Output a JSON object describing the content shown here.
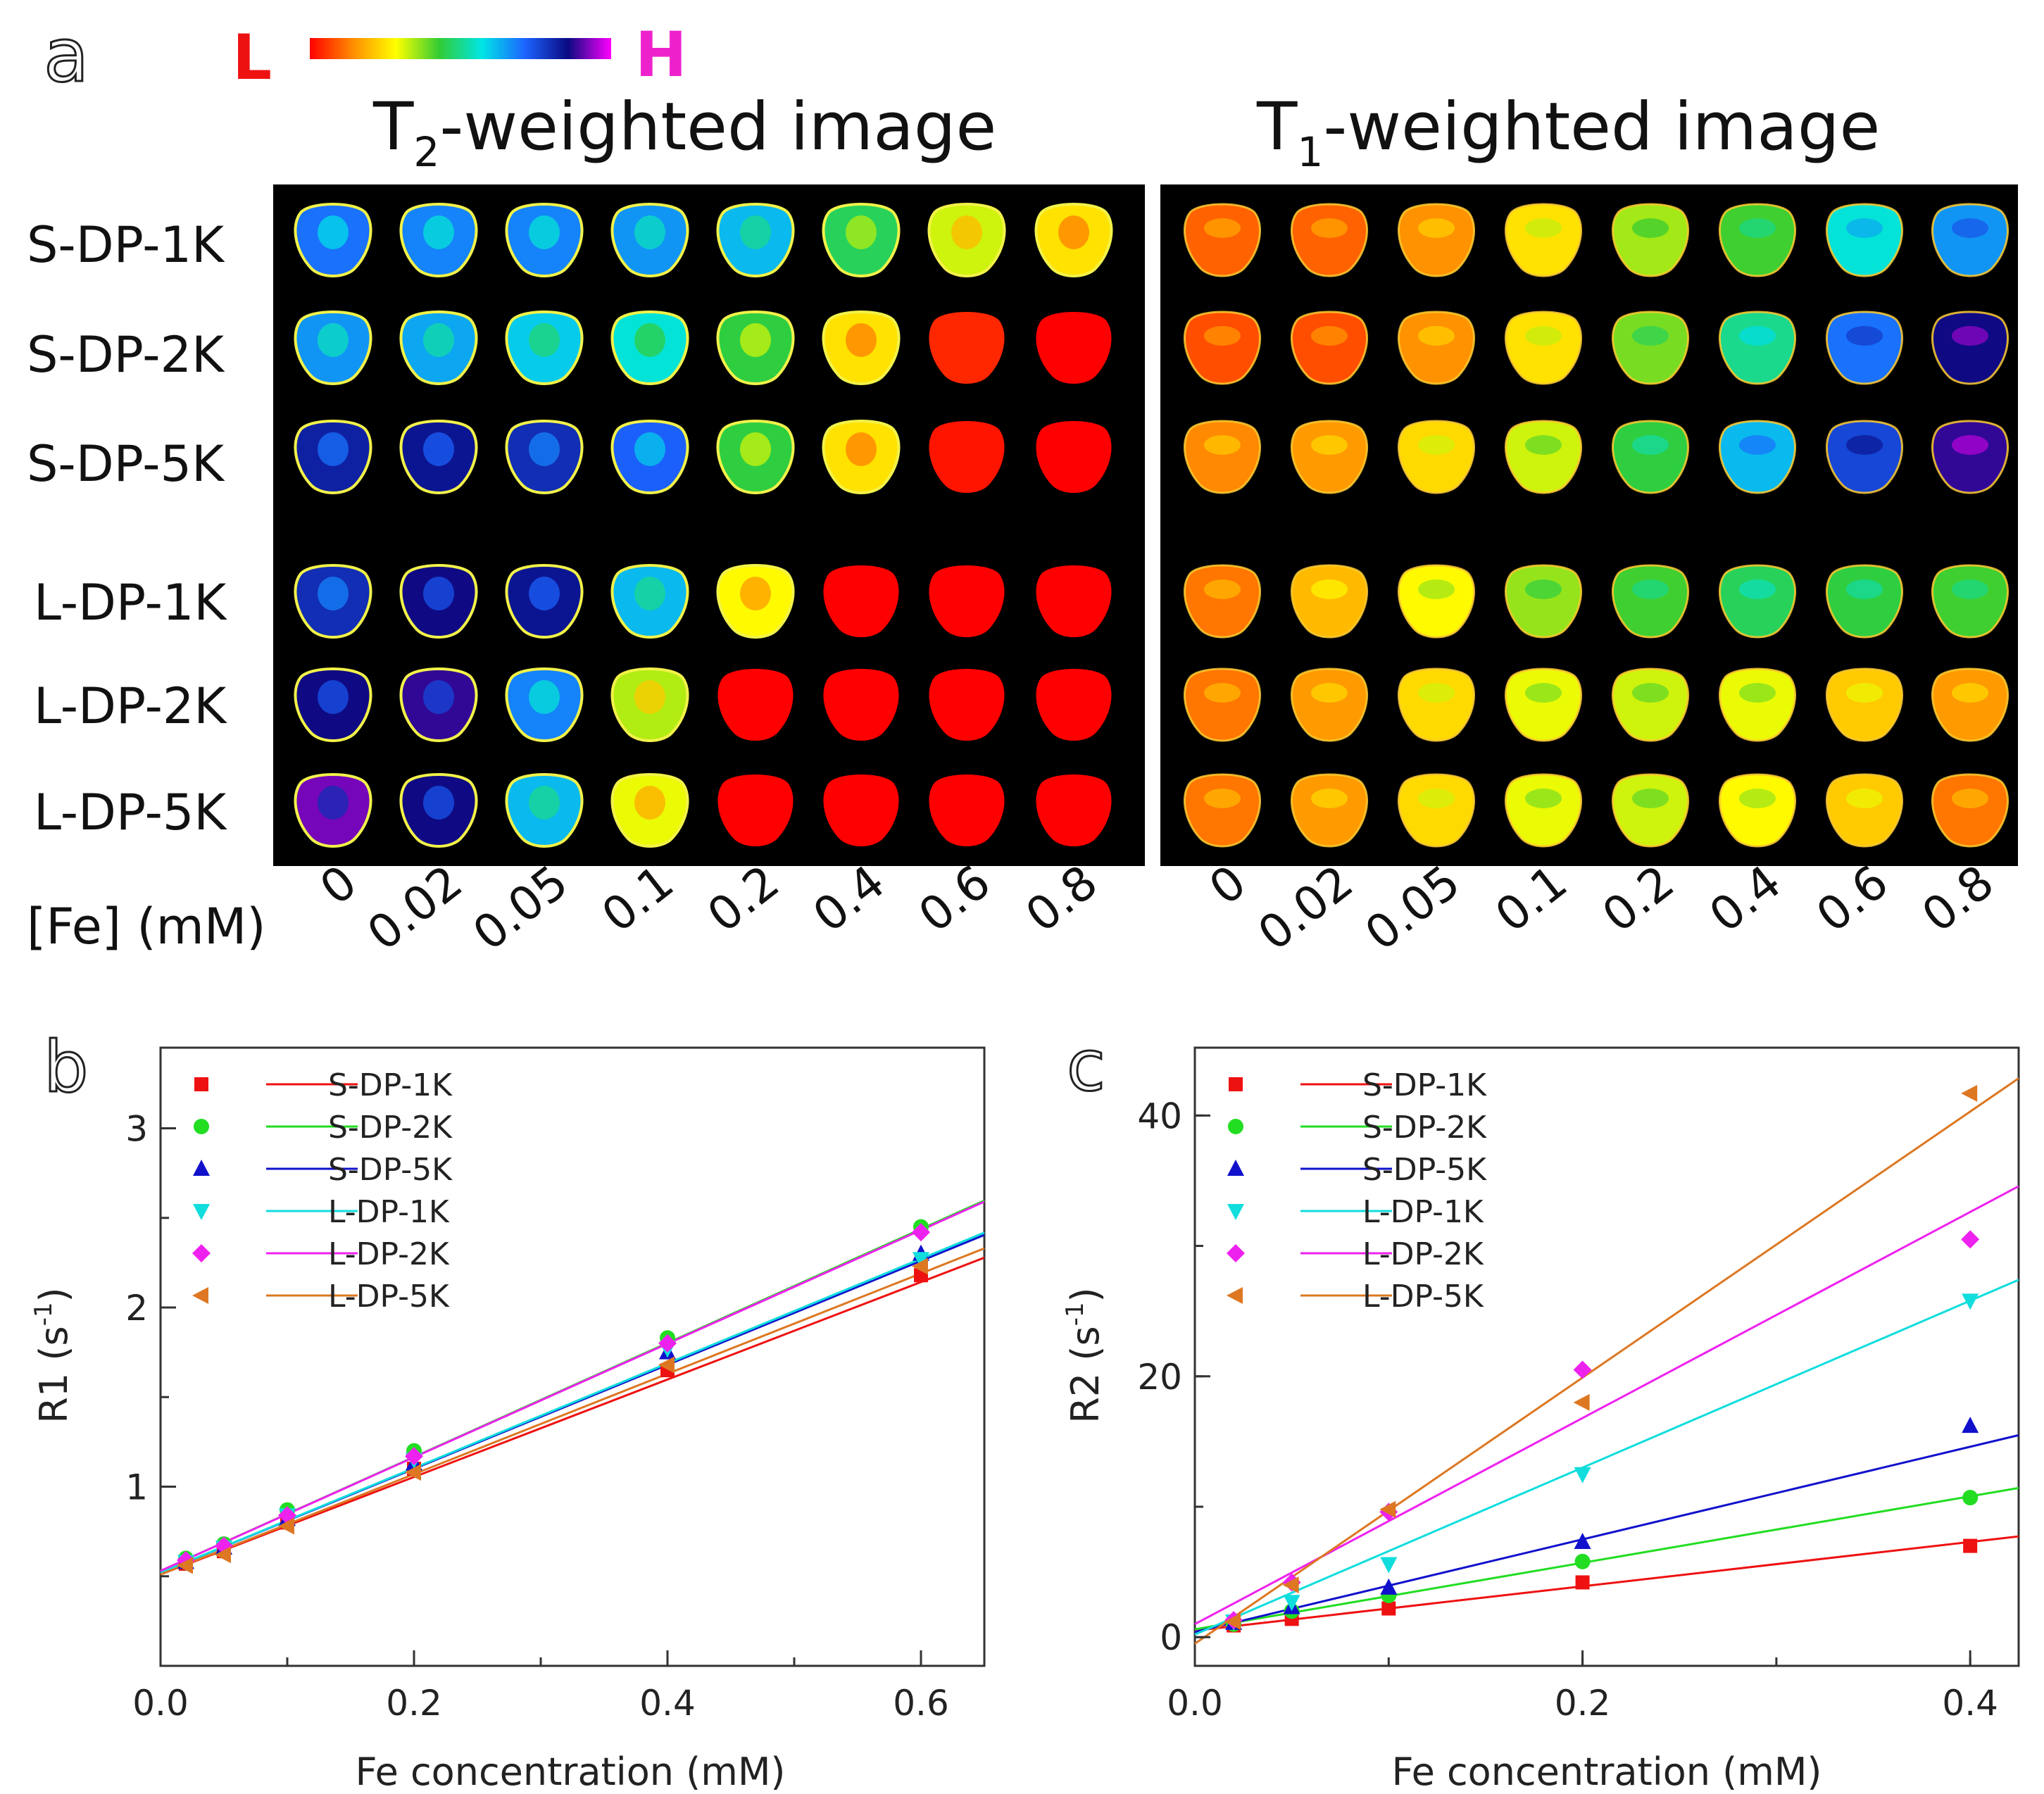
{
  "panel_a": {
    "label": "a",
    "colorbar": {
      "low_label": "L",
      "high_label": "H",
      "stops": [
        "#ff0000",
        "#ff8c00",
        "#ffff00",
        "#33cc33",
        "#00e5e5",
        "#1c64ff",
        "#0a0a82",
        "#ff00ff"
      ]
    },
    "t2_title_prefix": "T",
    "t2_title_sub": "2",
    "t2_title_suffix": "-weighted image",
    "t1_title_prefix": "T",
    "t1_title_sub": "1",
    "t1_title_suffix": "-weighted image",
    "row_labels": [
      "S-DP-1K",
      "S-DP-2K",
      "S-DP-5K",
      "L-DP-1K",
      "L-DP-2K",
      "L-DP-5K"
    ],
    "axis_label": "[Fe] (mM)",
    "concentrations": [
      "0",
      "0.02",
      "0.05",
      "0.1",
      "0.2",
      "0.4",
      "0.6",
      "0.8"
    ],
    "t2_intensity": [
      [
        0.7,
        0.68,
        0.68,
        0.66,
        0.62,
        0.46,
        0.32,
        0.25
      ],
      [
        0.66,
        0.64,
        0.6,
        0.56,
        0.44,
        0.25,
        0.04,
        0.0
      ],
      [
        0.82,
        0.84,
        0.8,
        0.72,
        0.44,
        0.25,
        0.02,
        0.0
      ],
      [
        0.8,
        0.86,
        0.84,
        0.62,
        0.28,
        0.0,
        0.0,
        0.0
      ],
      [
        0.86,
        0.88,
        0.68,
        0.34,
        0.0,
        0.0,
        0.0,
        0.0
      ],
      [
        0.92,
        0.86,
        0.62,
        0.3,
        0.0,
        0.0,
        0.0,
        0.0
      ]
    ],
    "t1_intensity": [
      [
        0.1,
        0.1,
        0.15,
        0.25,
        0.35,
        0.42,
        0.56,
        0.66
      ],
      [
        0.08,
        0.08,
        0.15,
        0.25,
        0.38,
        0.5,
        0.7,
        0.86
      ],
      [
        0.14,
        0.16,
        0.24,
        0.32,
        0.44,
        0.62,
        0.76,
        0.88
      ],
      [
        0.12,
        0.2,
        0.28,
        0.36,
        0.42,
        0.46,
        0.44,
        0.42
      ],
      [
        0.12,
        0.16,
        0.24,
        0.3,
        0.32,
        0.3,
        0.22,
        0.16
      ],
      [
        0.12,
        0.16,
        0.24,
        0.3,
        0.32,
        0.28,
        0.22,
        0.12
      ]
    ]
  },
  "chart_data": [
    {
      "id": "b",
      "panel_label": "b",
      "type": "scatter",
      "xlabel": "Fe concentration (mM)",
      "ylabel_main": "R1 (s",
      "ylabel_sup": "-1",
      "ylabel_end": ")",
      "xlim": [
        0.0,
        0.65
      ],
      "ylim": [
        0.0,
        3.45
      ],
      "xticks": [
        0.0,
        0.2,
        0.4,
        0.6
      ],
      "xtick_labels": [
        "0.0",
        "0.2",
        "0.4",
        "0.6"
      ],
      "yticks": [
        1,
        2,
        3
      ],
      "ytick_labels": [
        "1",
        "2",
        "3"
      ],
      "legend_position": "top-left",
      "series": [
        {
          "name": "S-DP-1K",
          "color": "#ee1111",
          "marker": "square",
          "x": [
            0.02,
            0.05,
            0.1,
            0.2,
            0.4,
            0.6
          ],
          "y": [
            0.57,
            0.64,
            0.8,
            1.1,
            1.65,
            2.18
          ],
          "fit": [
            0.51,
            2.72
          ]
        },
        {
          "name": "S-DP-2K",
          "color": "#22dd22",
          "marker": "circle",
          "x": [
            0.02,
            0.05,
            0.1,
            0.2,
            0.4,
            0.6
          ],
          "y": [
            0.6,
            0.68,
            0.87,
            1.2,
            1.83,
            2.45
          ],
          "fit": [
            0.53,
            3.18
          ]
        },
        {
          "name": "S-DP-5K",
          "color": "#1111cc",
          "marker": "triangle-up",
          "x": [
            0.02,
            0.05,
            0.1,
            0.2,
            0.4,
            0.6
          ],
          "y": [
            0.58,
            0.66,
            0.82,
            1.13,
            1.75,
            2.3
          ],
          "fit": [
            0.52,
            2.9
          ]
        },
        {
          "name": "L-DP-1K",
          "color": "#11dddd",
          "marker": "triangle-down",
          "x": [
            0.02,
            0.05,
            0.1,
            0.2,
            0.4,
            0.6
          ],
          "y": [
            0.58,
            0.66,
            0.84,
            1.15,
            1.77,
            2.27
          ],
          "fit": [
            0.52,
            2.92
          ]
        },
        {
          "name": "L-DP-2K",
          "color": "#ee22ee",
          "marker": "diamond",
          "x": [
            0.02,
            0.05,
            0.1,
            0.2,
            0.4,
            0.6
          ],
          "y": [
            0.59,
            0.67,
            0.84,
            1.17,
            1.8,
            2.42
          ],
          "fit": [
            0.53,
            3.17
          ]
        },
        {
          "name": "L-DP-5K",
          "color": "#dd7722",
          "marker": "triangle-left",
          "x": [
            0.02,
            0.05,
            0.1,
            0.2,
            0.4,
            0.6
          ],
          "y": [
            0.56,
            0.62,
            0.78,
            1.08,
            1.68,
            2.23
          ],
          "fit": [
            0.51,
            2.8
          ]
        }
      ]
    },
    {
      "id": "c",
      "panel_label": "c",
      "type": "scatter",
      "xlabel": "Fe concentration (mM)",
      "ylabel_main": "R2 (s",
      "ylabel_sup": "-1",
      "ylabel_end": ")",
      "xlim": [
        0.0,
        0.425
      ],
      "ylim": [
        -2.2,
        45.2
      ],
      "xticks": [
        0.0,
        0.2,
        0.4
      ],
      "xtick_labels": [
        "0.0",
        "0.2",
        "0.4"
      ],
      "yticks": [
        0,
        20,
        40
      ],
      "ytick_labels": [
        "0",
        "20",
        "40"
      ],
      "legend_position": "top-left",
      "series": [
        {
          "name": "S-DP-1K",
          "color": "#ee1111",
          "marker": "square",
          "x": [
            0.02,
            0.05,
            0.1,
            0.2,
            0.4
          ],
          "y": [
            0.9,
            1.4,
            2.2,
            4.2,
            7.0
          ],
          "fit": [
            0.5,
            17.0
          ]
        },
        {
          "name": "S-DP-2K",
          "color": "#22dd22",
          "marker": "circle",
          "x": [
            0.02,
            0.05,
            0.1,
            0.2,
            0.4
          ],
          "y": [
            1.0,
            2.0,
            3.2,
            5.8,
            10.7
          ],
          "fit": [
            0.6,
            25.5
          ]
        },
        {
          "name": "S-DP-5K",
          "color": "#1111cc",
          "marker": "triangle-up",
          "x": [
            0.02,
            0.05,
            0.1,
            0.2,
            0.4
          ],
          "y": [
            1.1,
            2.3,
            3.8,
            7.3,
            16.2
          ],
          "fit": [
            0.4,
            35.5
          ]
        },
        {
          "name": "L-DP-1K",
          "color": "#11dddd",
          "marker": "triangle-down",
          "x": [
            0.02,
            0.05,
            0.1,
            0.2,
            0.4
          ],
          "y": [
            1.2,
            2.7,
            5.6,
            12.5,
            25.8
          ],
          "fit": [
            0.2,
            64.0
          ]
        },
        {
          "name": "L-DP-2K",
          "color": "#ee22ee",
          "marker": "diamond",
          "x": [
            0.02,
            0.05,
            0.1,
            0.2,
            0.4
          ],
          "y": [
            1.3,
            4.2,
            9.6,
            20.5,
            30.5
          ],
          "fit": [
            1.0,
            79.0
          ]
        },
        {
          "name": "L-DP-5K",
          "color": "#dd7722",
          "marker": "triangle-left",
          "x": [
            0.02,
            0.05,
            0.1,
            0.2,
            0.4
          ],
          "y": [
            1.2,
            4.0,
            9.8,
            18.0,
            41.7
          ],
          "fit": [
            -0.5,
            102.0
          ]
        }
      ]
    }
  ]
}
